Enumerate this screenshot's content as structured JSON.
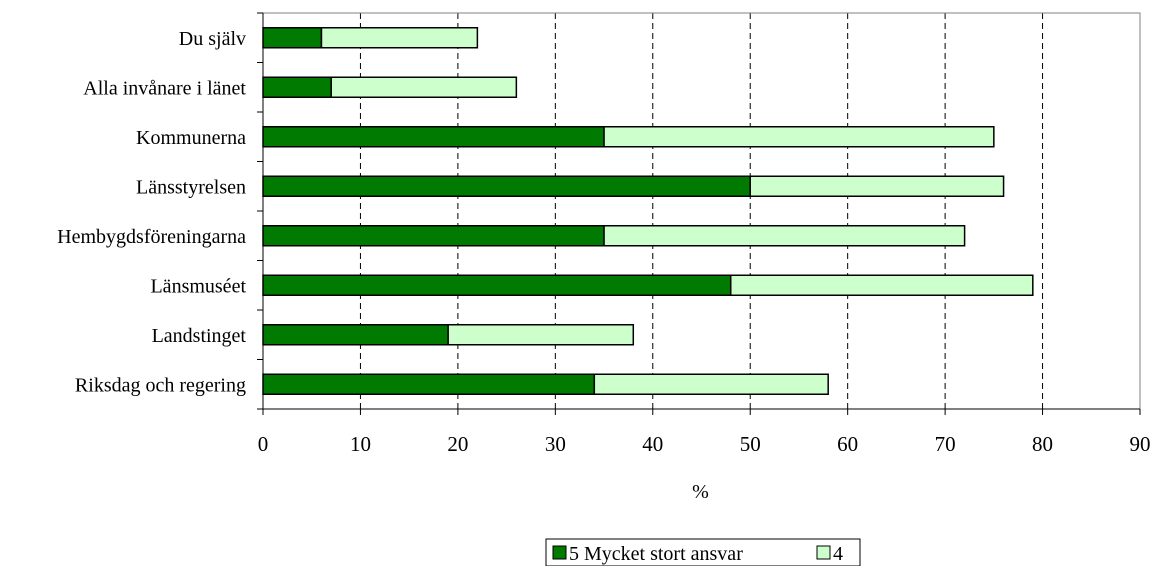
{
  "chart_data": {
    "type": "bar",
    "orientation": "horizontal",
    "stacked": true,
    "categories": [
      "Du själv",
      "Alla invånare i länet",
      "Kommunerna",
      "Länsstyrelsen",
      "Hembygdsföreningarna",
      "Länsmuséet",
      "Landstinget",
      "Riksdag och regering"
    ],
    "series": [
      {
        "name": "5 Mycket stort ansvar",
        "color": "#007a00",
        "values": [
          6,
          7,
          35,
          50,
          35,
          48,
          19,
          34
        ]
      },
      {
        "name": "4",
        "color": "#ccffcc",
        "values": [
          16,
          19,
          40,
          26,
          37,
          31,
          19,
          24
        ]
      }
    ],
    "xlabel": "%",
    "xlim": [
      0,
      90
    ],
    "xticks": [
      0,
      10,
      20,
      30,
      40,
      50,
      60,
      70,
      80,
      90
    ],
    "grid": "vertical-dashed",
    "legend_position": "bottom"
  }
}
